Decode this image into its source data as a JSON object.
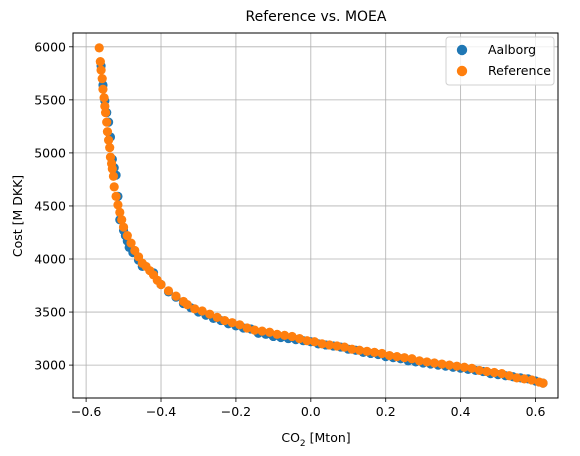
{
  "chart_data": {
    "type": "scatter",
    "title": "Reference vs. MOEA",
    "xlabel": {
      "main": "CO",
      "sub": "2",
      "rest": " [Mton]"
    },
    "ylabel": "Cost [M DKK]",
    "xlim": [
      -0.635,
      0.66
    ],
    "ylim": [
      2690,
      6130
    ],
    "xticks": [
      -0.6,
      -0.4,
      -0.2,
      0.0,
      0.2,
      0.4,
      0.6
    ],
    "xtick_labels": [
      "−0.6",
      "−0.4",
      "−0.2",
      "0.0",
      "0.2",
      "0.4",
      "0.6"
    ],
    "yticks": [
      3000,
      3500,
      4000,
      4500,
      5000,
      5500,
      6000
    ],
    "ytick_labels": [
      "3000",
      "3500",
      "4000",
      "4500",
      "5000",
      "5500",
      "6000"
    ],
    "grid": true,
    "legend_position": "top-right",
    "series": [
      {
        "name": "Aalborg",
        "color": "#1f77b4",
        "x": [
          -0.56,
          -0.555,
          -0.55,
          -0.545,
          -0.54,
          -0.535,
          -0.53,
          -0.525,
          -0.52,
          -0.515,
          -0.51,
          -0.5,
          -0.495,
          -0.49,
          -0.485,
          -0.475,
          -0.46,
          -0.45,
          -0.42,
          -0.4,
          -0.38,
          -0.36,
          -0.34,
          -0.32,
          -0.3,
          -0.28,
          -0.26,
          -0.24,
          -0.22,
          -0.2,
          -0.18,
          -0.16,
          -0.14,
          -0.12,
          -0.1,
          -0.08,
          -0.06,
          -0.04,
          -0.02,
          0.0,
          0.02,
          0.04,
          0.06,
          0.08,
          0.1,
          0.12,
          0.14,
          0.16,
          0.18,
          0.2,
          0.22,
          0.24,
          0.26,
          0.28,
          0.3,
          0.32,
          0.34,
          0.36,
          0.38,
          0.4,
          0.42,
          0.44,
          0.46,
          0.48,
          0.5,
          0.52,
          0.54,
          0.56,
          0.58,
          0.6,
          0.62
        ],
        "y": [
          5820,
          5640,
          5490,
          5380,
          5290,
          5150,
          4940,
          4860,
          4790,
          4590,
          4370,
          4270,
          4220,
          4170,
          4110,
          4060,
          3990,
          3930,
          3870,
          3760,
          3690,
          3640,
          3580,
          3540,
          3500,
          3470,
          3440,
          3420,
          3390,
          3370,
          3350,
          3340,
          3300,
          3290,
          3270,
          3260,
          3250,
          3240,
          3230,
          3220,
          3200,
          3190,
          3180,
          3170,
          3150,
          3140,
          3120,
          3110,
          3100,
          3080,
          3070,
          3060,
          3040,
          3030,
          3020,
          3010,
          3000,
          2990,
          2980,
          2970,
          2960,
          2950,
          2940,
          2920,
          2910,
          2900,
          2890,
          2880,
          2870,
          2850,
          2830
        ]
      },
      {
        "name": "Reference",
        "color": "#ff7f0e",
        "x": [
          -0.565,
          -0.562,
          -0.56,
          -0.557,
          -0.555,
          -0.552,
          -0.55,
          -0.548,
          -0.545,
          -0.543,
          -0.54,
          -0.537,
          -0.535,
          -0.532,
          -0.53,
          -0.527,
          -0.525,
          -0.52,
          -0.515,
          -0.51,
          -0.505,
          -0.5,
          -0.49,
          -0.48,
          -0.47,
          -0.46,
          -0.45,
          -0.44,
          -0.43,
          -0.42,
          -0.41,
          -0.4,
          -0.38,
          -0.36,
          -0.34,
          -0.33,
          -0.31,
          -0.29,
          -0.27,
          -0.25,
          -0.23,
          -0.21,
          -0.19,
          -0.17,
          -0.15,
          -0.13,
          -0.11,
          -0.09,
          -0.07,
          -0.05,
          -0.03,
          -0.01,
          0.01,
          0.03,
          0.05,
          0.07,
          0.09,
          0.11,
          0.13,
          0.15,
          0.17,
          0.19,
          0.21,
          0.23,
          0.25,
          0.27,
          0.29,
          0.31,
          0.33,
          0.35,
          0.37,
          0.39,
          0.41,
          0.43,
          0.45,
          0.47,
          0.49,
          0.51,
          0.53,
          0.55,
          0.57,
          0.59,
          0.61,
          0.62
        ],
        "y": [
          5990,
          5860,
          5780,
          5700,
          5600,
          5520,
          5440,
          5380,
          5290,
          5200,
          5120,
          5050,
          4960,
          4900,
          4850,
          4780,
          4680,
          4590,
          4510,
          4440,
          4370,
          4300,
          4220,
          4150,
          4080,
          4020,
          3960,
          3930,
          3890,
          3850,
          3800,
          3760,
          3700,
          3650,
          3600,
          3570,
          3530,
          3510,
          3480,
          3450,
          3420,
          3400,
          3380,
          3350,
          3330,
          3320,
          3310,
          3290,
          3280,
          3270,
          3250,
          3230,
          3220,
          3200,
          3190,
          3180,
          3170,
          3150,
          3140,
          3130,
          3120,
          3110,
          3090,
          3080,
          3070,
          3060,
          3040,
          3030,
          3020,
          3010,
          3000,
          2990,
          2980,
          2970,
          2950,
          2940,
          2930,
          2920,
          2900,
          2880,
          2870,
          2860,
          2840,
          2830
        ]
      }
    ]
  }
}
